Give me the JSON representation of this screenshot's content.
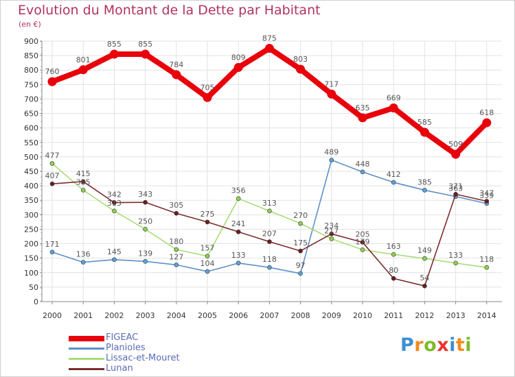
{
  "title": "Evolution du Montant de la Dette par Habitant",
  "unit": "(en €)",
  "logo": {
    "text": "Proxiti",
    "letter_colors": [
      "#3d8fd1",
      "#f28c1e",
      "#7dbb2b",
      "#e8362f",
      "#3d8fd1",
      "#f28c1e",
      "#7dbb2b"
    ]
  },
  "chart_data": {
    "type": "line",
    "title": "Evolution du Montant de la Dette par Habitant",
    "ylabel": "(en €)",
    "xlabel": "",
    "x": [
      "2000",
      "2001",
      "2002",
      "2003",
      "2004",
      "2005",
      "2006",
      "2007",
      "2008",
      "2009",
      "2010",
      "2011",
      "2012",
      "2013",
      "2014"
    ],
    "ylim": [
      0,
      900
    ],
    "yticks": [
      "0",
      "50",
      "100",
      "150",
      "200",
      "250",
      "300",
      "350",
      "400",
      "450",
      "500",
      "550",
      "600",
      "650",
      "700",
      "750",
      "800",
      "850",
      "900"
    ],
    "grid": true,
    "legend_position": "bottom-left",
    "series": [
      {
        "name": "FIGEAC",
        "color": "#e8000b",
        "marker_color": "#e8000b",
        "label_color": "#555555",
        "values": [
          760,
          801,
          855,
          855,
          784,
          705,
          809,
          875,
          803,
          717,
          635,
          669,
          585,
          509,
          618
        ]
      },
      {
        "name": "Planioles",
        "color": "#5b8fc7",
        "marker_color": "#5ba3dd",
        "label_color": "#555555",
        "values": [
          171,
          136,
          145,
          139,
          127,
          104,
          133,
          118,
          97,
          489,
          448,
          412,
          385,
          363,
          339
        ]
      },
      {
        "name": "Lissac-et-Mouret",
        "color": "#a9dc79",
        "marker_color": "#8fd14f",
        "label_color": "#555555",
        "values": [
          477,
          385,
          313,
          250,
          180,
          157,
          356,
          313,
          270,
          217,
          179,
          163,
          149,
          133,
          118
        ]
      },
      {
        "name": "Lunan",
        "color": "#7a2a2a",
        "marker_color": "#6b1f1f",
        "label_color": "#555555",
        "values": [
          407,
          415,
          342,
          343,
          305,
          275,
          241,
          207,
          175,
          234,
          205,
          80,
          54,
          371,
          347
        ]
      }
    ]
  }
}
